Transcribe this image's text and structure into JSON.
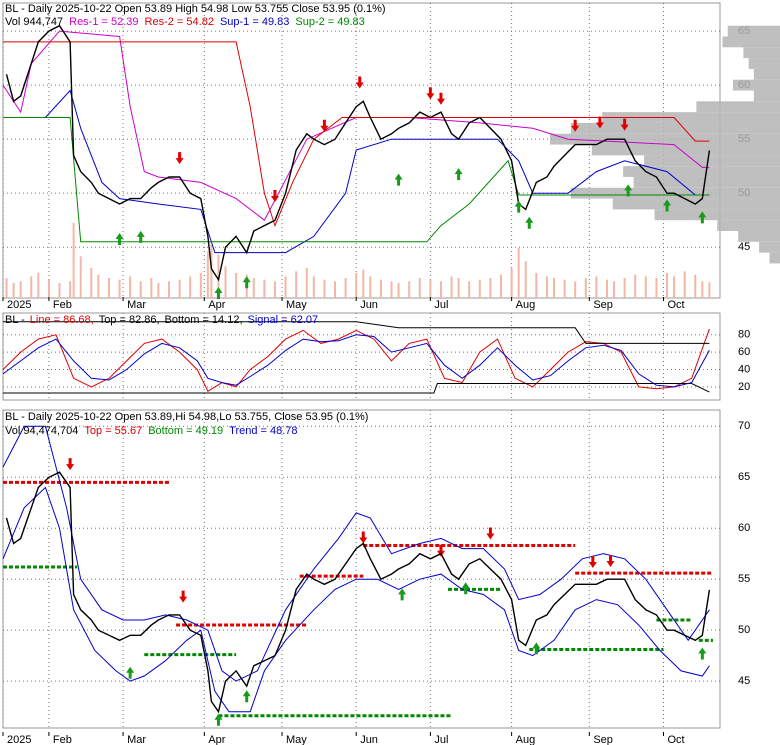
{
  "chart_data": [
    {
      "type": "price",
      "title": "BL - Daily 2025-10-22 Open 53.89  High 54.98  Low 53.755  Close 53.95 (0.1%)",
      "volume_label": "Vol 944,747",
      "xlim": [
        0,
        203
      ],
      "xticks": [
        {
          "value": 0,
          "label": "2025"
        },
        {
          "value": 13,
          "label": "Feb"
        },
        {
          "value": 34,
          "label": "Mar"
        },
        {
          "value": 57,
          "label": "Apr"
        },
        {
          "value": 79,
          "label": "May"
        },
        {
          "value": 100,
          "label": "Jun"
        },
        {
          "value": 121,
          "label": "Jul"
        },
        {
          "value": 144,
          "label": "Aug"
        },
        {
          "value": 166,
          "label": "Sep"
        },
        {
          "value": 187,
          "label": "Oct"
        }
      ],
      "ylim": [
        40.3,
        67.6
      ],
      "yticks": [
        45,
        50,
        55,
        60,
        65
      ],
      "grid": true,
      "color": "#000000",
      "x": [
        1,
        3,
        5,
        8,
        10,
        13,
        16,
        19,
        20,
        22,
        25,
        27,
        30,
        33,
        36,
        39,
        42,
        44,
        47,
        50,
        53,
        56,
        58,
        59,
        61,
        63,
        66,
        69,
        71,
        74,
        77,
        80,
        83,
        86,
        88,
        91,
        94,
        97,
        100,
        102,
        104,
        107,
        110,
        112,
        115,
        118,
        121,
        124,
        127,
        129,
        132,
        135,
        138,
        141,
        144,
        146,
        148,
        151,
        154,
        156,
        159,
        162,
        165,
        168,
        171,
        173,
        176,
        179,
        182,
        185,
        188,
        190,
        193,
        196,
        198,
        200
      ],
      "close": [
        61,
        58.5,
        59,
        62,
        64,
        65,
        65.5,
        64,
        53.5,
        52,
        51,
        50,
        49.5,
        49,
        49.5,
        49.5,
        50.5,
        51,
        51.5,
        51.5,
        50,
        49.5,
        46,
        43,
        42,
        45,
        46,
        44.5,
        46.5,
        47,
        47.5,
        50,
        54,
        55.5,
        55,
        54.5,
        55,
        56.5,
        58,
        58.5,
        57,
        55,
        55.5,
        56,
        56.5,
        57.5,
        57,
        57.5,
        55.5,
        55,
        56.5,
        57,
        56,
        55,
        53,
        49,
        48.5,
        51,
        51.5,
        52.5,
        53.5,
        54.5,
        54.5,
        54.5,
        55,
        55,
        55,
        53,
        52,
        51.5,
        50,
        50,
        49.5,
        49,
        49.5,
        53.95
      ],
      "volume": [
        1200000,
        900000,
        1000000,
        1300000,
        1500000,
        1100000,
        900000,
        1000000,
        4500000,
        2500000,
        1800000,
        1400000,
        1200000,
        1100000,
        1300000,
        1000000,
        1200000,
        900000,
        1000000,
        1100000,
        1300000,
        1500000,
        2800000,
        3200000,
        2600000,
        1900000,
        1500000,
        1400000,
        1200000,
        1100000,
        1000000,
        1300000,
        1600000,
        1800000,
        1300000,
        1100000,
        1000000,
        1200000,
        1500000,
        1700000,
        1300000,
        1100000,
        1000000,
        900000,
        1000000,
        1200000,
        1100000,
        1000000,
        1300000,
        1200000,
        1000000,
        1100000,
        1200000,
        1400000,
        1800000,
        3000000,
        2200000,
        1500000,
        1300000,
        1200000,
        1100000,
        1000000,
        1200000,
        1300000,
        1100000,
        1000000,
        1200000,
        1400000,
        1300000,
        1200000,
        1500000,
        1300000,
        1600000,
        1400000,
        1000000,
        944747
      ],
      "volume_color": "#f4b6a6",
      "series": [
        {
          "label": "Res-1 = 52.39",
          "color": "#cc00cc",
          "x": [
            0,
            5,
            8,
            16,
            33,
            36,
            40,
            44,
            56,
            66,
            74,
            86,
            100,
            115,
            135,
            150,
            160,
            190,
            198,
            200
          ],
          "values": [
            60,
            57.5,
            62,
            65,
            64.5,
            58,
            52,
            51.5,
            51,
            49.5,
            47.5,
            55,
            57,
            57,
            56.5,
            56,
            55,
            54.5,
            52.39,
            52.39
          ]
        },
        {
          "label": "Res-2 = 54.82",
          "color": "#e00000",
          "x": [
            0,
            66,
            70,
            74,
            77,
            82,
            88,
            96,
            190,
            196,
            200
          ],
          "values": [
            64,
            64,
            58,
            50,
            47,
            51,
            55,
            57,
            57,
            54.82,
            54.82
          ]
        },
        {
          "label": "Sup-1 = 49.83",
          "color": "#0000cc",
          "x": [
            0,
            12,
            19,
            22,
            28,
            33,
            44,
            56,
            60,
            80,
            88,
            97,
            100,
            110,
            140,
            146,
            150,
            160,
            168,
            176,
            188,
            196,
            200
          ],
          "values": [
            57,
            57,
            59.5,
            56,
            51,
            49.5,
            49,
            48.5,
            44.5,
            44.5,
            46,
            50,
            54,
            55,
            55,
            53,
            50,
            50,
            52,
            53,
            52,
            49.83,
            49.83
          ]
        },
        {
          "label": "Sup-2 = 49.83",
          "color": "#008800",
          "x": [
            0,
            19,
            22,
            120,
            124,
            132,
            143,
            146,
            200
          ],
          "values": [
            57,
            57,
            45.5,
            45.5,
            47,
            49,
            53,
            49.83,
            49.83
          ]
        }
      ],
      "sell": {
        "x": [
          50,
          77,
          91,
          101,
          121,
          124,
          162,
          169,
          176
        ],
        "values": [
          52.5,
          49,
          55.5,
          59.5,
          58.5,
          58,
          55.5,
          55.8,
          55.6
        ]
      },
      "buy": {
        "x": [
          33,
          39,
          61,
          69,
          112,
          129,
          146,
          149,
          177,
          188,
          198
        ],
        "values": [
          46.5,
          46.7,
          41.5,
          42.5,
          52,
          52.5,
          49.5,
          48,
          51,
          49.6,
          48.5
        ]
      },
      "volume_profile": {
        "prices": [
          44,
          45,
          46,
          47,
          48,
          49,
          50,
          51,
          52,
          53,
          54,
          55,
          56,
          57,
          58,
          59,
          60,
          61,
          62,
          63,
          64,
          65
        ],
        "values": [
          10,
          20,
          40,
          60,
          120,
          160,
          200,
          140,
          150,
          130,
          180,
          220,
          200,
          170,
          80,
          25,
          45,
          25,
          30,
          35,
          55,
          50
        ]
      }
    },
    {
      "type": "oscillator",
      "prefix": "BL -",
      "ylim": [
        5,
        105
      ],
      "yticks": [
        20,
        40,
        60,
        80
      ],
      "grid": true,
      "series": [
        {
          "label": "Line = 86.68,",
          "color": "#e00000",
          "x": [
            0,
            5,
            10,
            15,
            20,
            25,
            30,
            35,
            40,
            45,
            50,
            55,
            58,
            62,
            66,
            70,
            75,
            80,
            85,
            90,
            95,
            100,
            105,
            110,
            115,
            120,
            125,
            130,
            135,
            140,
            145,
            150,
            155,
            160,
            165,
            170,
            175,
            180,
            185,
            190,
            195,
            200
          ],
          "values": [
            40,
            60,
            75,
            80,
            30,
            20,
            30,
            50,
            70,
            75,
            60,
            40,
            15,
            25,
            20,
            40,
            55,
            75,
            85,
            70,
            75,
            85,
            75,
            50,
            70,
            75,
            30,
            25,
            60,
            75,
            30,
            20,
            40,
            60,
            72,
            70,
            60,
            20,
            18,
            20,
            30,
            86.68
          ]
        },
        {
          "label": "Top = 82.86,",
          "color": "#000000",
          "x": [
            0,
            100,
            112,
            162,
            165,
            200
          ],
          "values": [
            95,
            95,
            88,
            88,
            70,
            70
          ]
        },
        {
          "label": "Bottom = 14.12,",
          "color": "#000000",
          "x": [
            0,
            122,
            123,
            195,
            200
          ],
          "values": [
            13,
            13,
            24,
            24,
            14.12
          ]
        },
        {
          "label": "Signal = 62.07",
          "color": "#0000cc",
          "x": [
            0,
            5,
            10,
            15,
            20,
            25,
            30,
            35,
            40,
            45,
            50,
            55,
            58,
            62,
            66,
            70,
            75,
            80,
            85,
            90,
            95,
            100,
            105,
            110,
            115,
            120,
            125,
            130,
            135,
            140,
            145,
            150,
            155,
            160,
            165,
            170,
            175,
            180,
            185,
            190,
            195,
            200
          ],
          "values": [
            35,
            50,
            65,
            75,
            50,
            30,
            28,
            40,
            58,
            70,
            65,
            50,
            30,
            25,
            22,
            32,
            45,
            62,
            75,
            72,
            73,
            80,
            78,
            60,
            65,
            70,
            45,
            30,
            45,
            65,
            45,
            28,
            33,
            50,
            65,
            68,
            62,
            35,
            22,
            20,
            25,
            62.07
          ]
        }
      ]
    },
    {
      "type": "bands",
      "title": "BL - Daily 2025-10-22 Open 53.89,Hi 54.98,Lo 53.755, Close 53.95 (0.1%)",
      "legend": [
        {
          "label": "Vol 94,474,704",
          "color": "#000000"
        },
        {
          "label": "Top = 55.67",
          "color": "#e00000"
        },
        {
          "label": "Bottom = 49.19",
          "color": "#008800"
        },
        {
          "label": "Trend = 48.78",
          "color": "#0000cc"
        }
      ],
      "ylim": [
        40.4,
        71.6
      ],
      "yticks": [
        45,
        50,
        55,
        60,
        65,
        70
      ],
      "grid": true,
      "band_color": "#0000cc",
      "upper": {
        "x": [
          0,
          6,
          12,
          18,
          22,
          28,
          34,
          40,
          46,
          52,
          58,
          62,
          66,
          72,
          80,
          88,
          95,
          100,
          104,
          110,
          118,
          124,
          130,
          136,
          142,
          146,
          152,
          158,
          164,
          170,
          176,
          182,
          188,
          194,
          200
        ],
        "values": [
          66,
          70,
          70,
          62,
          55,
          52,
          51,
          51,
          51.5,
          51,
          50,
          46,
          45,
          46,
          52,
          56,
          59,
          61.5,
          61,
          57.5,
          58.5,
          59,
          58,
          58,
          56,
          53,
          53.5,
          55,
          57,
          57.5,
          57,
          55,
          52,
          49,
          52
        ]
      },
      "lower": {
        "x": [
          0,
          6,
          12,
          16,
          20,
          26,
          32,
          36,
          40,
          46,
          52,
          56,
          60,
          64,
          70,
          74,
          80,
          88,
          94,
          100,
          106,
          112,
          118,
          124,
          130,
          136,
          142,
          146,
          150,
          156,
          162,
          168,
          174,
          180,
          186,
          192,
          198,
          200
        ],
        "values": [
          57,
          62,
          64,
          60,
          52,
          48,
          46,
          45,
          45.5,
          47,
          49,
          50,
          44,
          42,
          42,
          46,
          49,
          52,
          54,
          55,
          55,
          54,
          55,
          55.5,
          54,
          53.5,
          52,
          48,
          47.5,
          49,
          52,
          53,
          52.5,
          50.5,
          48,
          46,
          45.5,
          46.5
        ]
      },
      "levels": [
        {
          "color": "#e00000",
          "from": 0,
          "to": 47,
          "value": 64.5
        },
        {
          "color": "#e00000",
          "from": 49,
          "to": 86,
          "value": 50.5
        },
        {
          "color": "#e00000",
          "from": 84,
          "to": 102,
          "value": 55.3
        },
        {
          "color": "#e00000",
          "from": 102,
          "to": 162,
          "value": 58.3
        },
        {
          "color": "#e00000",
          "from": 162,
          "to": 201,
          "value": 55.6
        },
        {
          "color": "#008800",
          "from": 0,
          "to": 21,
          "value": 56.2
        },
        {
          "color": "#008800",
          "from": 40,
          "to": 66,
          "value": 47.6
        },
        {
          "color": "#008800",
          "from": 61,
          "to": 127,
          "value": 41.6
        },
        {
          "color": "#008800",
          "from": 126,
          "to": 141,
          "value": 54
        },
        {
          "color": "#008800",
          "from": 149,
          "to": 187,
          "value": 48.1
        },
        {
          "color": "#008800",
          "from": 185,
          "to": 195,
          "value": 51
        },
        {
          "color": "#008800",
          "from": 197,
          "to": 201,
          "value": 49
        }
      ],
      "sell": {
        "x": [
          19,
          51,
          102,
          124,
          138,
          167,
          172
        ],
        "values": [
          65.5,
          52.5,
          58.3,
          57,
          58.7,
          55.9,
          56
        ]
      },
      "buy": {
        "x": [
          36,
          61,
          69,
          113,
          131,
          151,
          198
        ],
        "values": [
          46.6,
          42,
          44.3,
          54.3,
          54.9,
          49,
          48.5
        ]
      }
    }
  ]
}
